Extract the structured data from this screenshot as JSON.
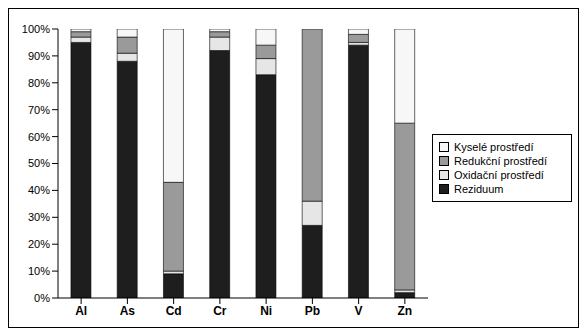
{
  "chart_data": {
    "type": "bar",
    "stacked": true,
    "grid": false,
    "legend": "right",
    "categories": [
      "Al",
      "As",
      "Cd",
      "Cr",
      "Ni",
      "Pb",
      "V",
      "Zn"
    ],
    "series": [
      {
        "name": "Reziduum",
        "color": "#1e1e1e",
        "values": [
          95,
          88,
          9,
          92,
          83,
          27,
          94,
          2
        ]
      },
      {
        "name": "Oxidační prostředí",
        "color": "#e6e6e6",
        "values": [
          2,
          3,
          1,
          5,
          6,
          9,
          1,
          1
        ]
      },
      {
        "name": "Redukční prostředí",
        "color": "#9a9a9a",
        "values": [
          2,
          6,
          33,
          2,
          5,
          64,
          3,
          62
        ]
      },
      {
        "name": "Kyselé prostředí",
        "color": "#f7f7f7",
        "values": [
          1,
          3,
          57,
          1,
          6,
          0,
          2,
          35
        ]
      }
    ],
    "ylim": [
      0,
      100
    ],
    "yticks": [
      {
        "value": 0,
        "label": "0%"
      },
      {
        "value": 10,
        "label": "10%"
      },
      {
        "value": 20,
        "label": "20%"
      },
      {
        "value": 30,
        "label": "30%"
      },
      {
        "value": 40,
        "label": "40%"
      },
      {
        "value": 50,
        "label": "50%"
      },
      {
        "value": 60,
        "label": "60%"
      },
      {
        "value": 70,
        "label": "70%"
      },
      {
        "value": 80,
        "label": "80%"
      },
      {
        "value": 90,
        "label": "90%"
      },
      {
        "value": 100,
        "label": "100%"
      }
    ]
  }
}
